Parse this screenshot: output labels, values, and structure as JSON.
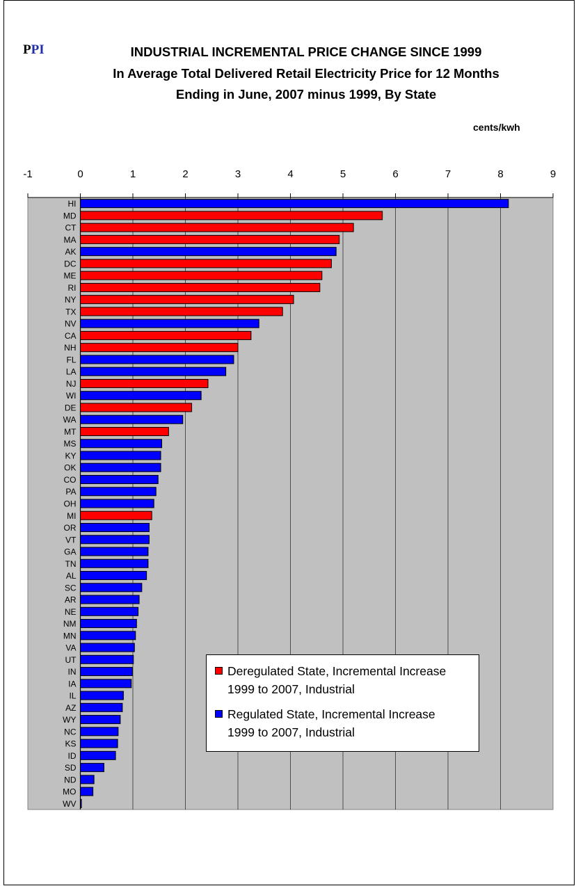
{
  "logo": {
    "first": "P",
    "rest": "PI"
  },
  "title_lines": [
    "INDUSTRIAL INCREMENTAL PRICE CHANGE SINCE 1999",
    "In Average Total Delivered Retail Electricity Price for 12 Months",
    "Ending in June,  2007 minus 1999, By State"
  ],
  "unit_label": "cents/kwh",
  "colors": {
    "deregulated": "#ff0000",
    "regulated": "#0000ff",
    "plot_bg": "#c0c0c0"
  },
  "legend": [
    {
      "line1": "Deregulated State, Incremental Increase",
      "line2": "1999 to 2007, Industrial",
      "series": "deregulated"
    },
    {
      "line1": "Regulated State, Incremental Increase",
      "line2": "1999 to 2007, Industrial",
      "series": "regulated"
    }
  ],
  "chart_data": {
    "type": "bar",
    "orientation": "horizontal",
    "title": "INDUSTRIAL INCREMENTAL PRICE CHANGE SINCE 1999 In Average Total Delivered Retail Electricity Price for 12 Months Ending in June,  2007 minus 1999, By State",
    "xlabel": "cents/kwh",
    "xlim": [
      -1,
      9
    ],
    "xticks": [
      "-1",
      "0",
      "1",
      "2",
      "3",
      "4",
      "5",
      "6",
      "7",
      "8",
      "9"
    ],
    "grid": true,
    "legend_position": "lower-center",
    "series": [
      {
        "name": "Deregulated State, Incremental Increase 1999 to 2007, Industrial",
        "color": "#ff0000"
      },
      {
        "name": "Regulated State, Incremental Increase 1999 to 2007, Industrial",
        "color": "#0000ff"
      }
    ],
    "bars": [
      {
        "state": "HI",
        "value": 8.15,
        "series": "regulated"
      },
      {
        "state": "MD",
        "value": 5.75,
        "series": "deregulated"
      },
      {
        "state": "CT",
        "value": 5.2,
        "series": "deregulated"
      },
      {
        "state": "MA",
        "value": 4.93,
        "series": "deregulated"
      },
      {
        "state": "AK",
        "value": 4.87,
        "series": "regulated"
      },
      {
        "state": "DC",
        "value": 4.78,
        "series": "deregulated"
      },
      {
        "state": "ME",
        "value": 4.6,
        "series": "deregulated"
      },
      {
        "state": "RI",
        "value": 4.56,
        "series": "deregulated"
      },
      {
        "state": "NY",
        "value": 4.06,
        "series": "deregulated"
      },
      {
        "state": "TX",
        "value": 3.85,
        "series": "deregulated"
      },
      {
        "state": "NV",
        "value": 3.4,
        "series": "regulated"
      },
      {
        "state": "CA",
        "value": 3.25,
        "series": "deregulated"
      },
      {
        "state": "NH",
        "value": 3.0,
        "series": "deregulated"
      },
      {
        "state": "FL",
        "value": 2.92,
        "series": "regulated"
      },
      {
        "state": "LA",
        "value": 2.77,
        "series": "regulated"
      },
      {
        "state": "NJ",
        "value": 2.43,
        "series": "deregulated"
      },
      {
        "state": "WI",
        "value": 2.3,
        "series": "regulated"
      },
      {
        "state": "DE",
        "value": 2.12,
        "series": "deregulated"
      },
      {
        "state": "WA",
        "value": 1.95,
        "series": "regulated"
      },
      {
        "state": "MT",
        "value": 1.68,
        "series": "deregulated"
      },
      {
        "state": "MS",
        "value": 1.55,
        "series": "regulated"
      },
      {
        "state": "KY",
        "value": 1.53,
        "series": "regulated"
      },
      {
        "state": "OK",
        "value": 1.53,
        "series": "regulated"
      },
      {
        "state": "CO",
        "value": 1.48,
        "series": "regulated"
      },
      {
        "state": "PA",
        "value": 1.44,
        "series": "regulated"
      },
      {
        "state": "OH",
        "value": 1.4,
        "series": "regulated"
      },
      {
        "state": "MI",
        "value": 1.36,
        "series": "deregulated"
      },
      {
        "state": "OR",
        "value": 1.31,
        "series": "regulated"
      },
      {
        "state": "VT",
        "value": 1.31,
        "series": "regulated"
      },
      {
        "state": "GA",
        "value": 1.29,
        "series": "regulated"
      },
      {
        "state": "TN",
        "value": 1.29,
        "series": "regulated"
      },
      {
        "state": "AL",
        "value": 1.26,
        "series": "regulated"
      },
      {
        "state": "SC",
        "value": 1.17,
        "series": "regulated"
      },
      {
        "state": "AR",
        "value": 1.12,
        "series": "regulated"
      },
      {
        "state": "NE",
        "value": 1.1,
        "series": "regulated"
      },
      {
        "state": "NM",
        "value": 1.07,
        "series": "regulated"
      },
      {
        "state": "MN",
        "value": 1.05,
        "series": "regulated"
      },
      {
        "state": "VA",
        "value": 1.03,
        "series": "regulated"
      },
      {
        "state": "UT",
        "value": 1.01,
        "series": "regulated"
      },
      {
        "state": "IN",
        "value": 0.99,
        "series": "regulated"
      },
      {
        "state": "IA",
        "value": 0.97,
        "series": "regulated"
      },
      {
        "state": "IL",
        "value": 0.82,
        "series": "regulated"
      },
      {
        "state": "AZ",
        "value": 0.8,
        "series": "regulated"
      },
      {
        "state": "WY",
        "value": 0.76,
        "series": "regulated"
      },
      {
        "state": "NC",
        "value": 0.72,
        "series": "regulated"
      },
      {
        "state": "KS",
        "value": 0.71,
        "series": "regulated"
      },
      {
        "state": "ID",
        "value": 0.67,
        "series": "regulated"
      },
      {
        "state": "SD",
        "value": 0.45,
        "series": "regulated"
      },
      {
        "state": "ND",
        "value": 0.26,
        "series": "regulated"
      },
      {
        "state": "MO",
        "value": 0.24,
        "series": "regulated"
      },
      {
        "state": "WV",
        "value": 0.02,
        "series": "regulated"
      }
    ]
  }
}
